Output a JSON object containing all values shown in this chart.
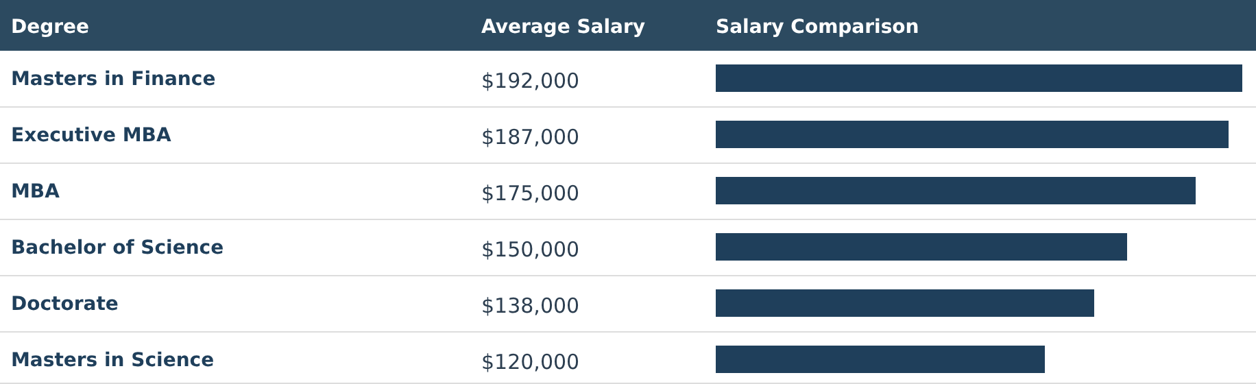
{
  "chart_data": {
    "type": "bar",
    "orientation": "horizontal",
    "ylabel": "Degree",
    "xlabel": "Salary Comparison",
    "annotations": [
      "Average Salary"
    ],
    "categories": [
      "Masters in Finance",
      "Executive MBA",
      "MBA",
      "Bachelor of Science",
      "Doctorate",
      "Masters in Science"
    ],
    "values": [
      192000,
      187000,
      175000,
      150000,
      138000,
      120000
    ],
    "value_labels": [
      "$192,000",
      "$187,000",
      "$175,000",
      "$150,000",
      "$138,000",
      "$120,000"
    ],
    "color": "#1f3f5b"
  }
}
